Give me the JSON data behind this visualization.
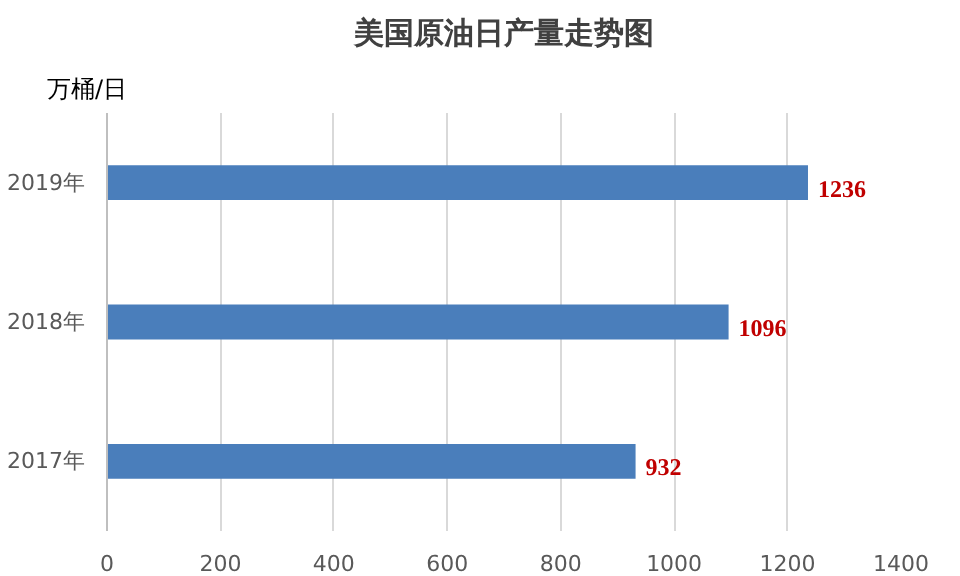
{
  "chart_data": {
    "type": "bar",
    "orientation": "horizontal",
    "title": "美国原油日产量走势图",
    "ylabel": "万桶/日",
    "categories": [
      "2019年",
      "2018年",
      "2017年"
    ],
    "values": [
      1236,
      1096,
      932
    ],
    "color": "#4a7ebb",
    "xlim": [
      0,
      1400
    ],
    "xticks": [
      0,
      200,
      400,
      600,
      800,
      1000,
      1200,
      1400
    ],
    "grid": "x",
    "data_labels": true
  }
}
